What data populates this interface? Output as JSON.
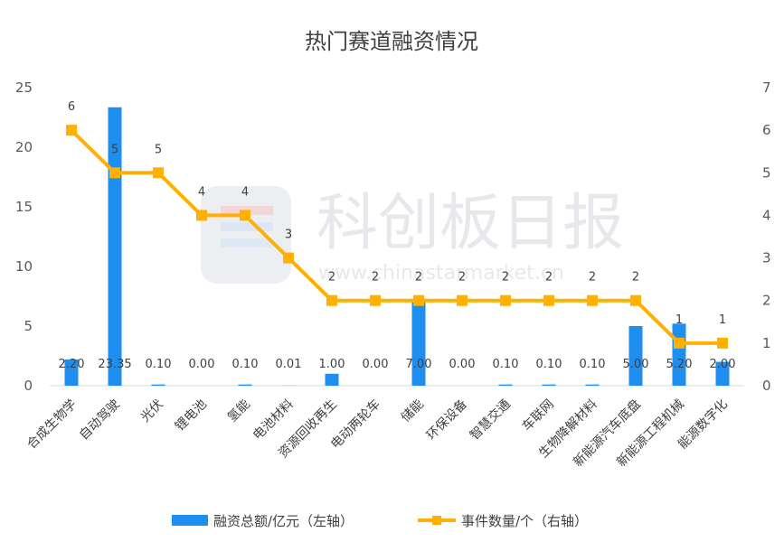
{
  "chart_data": {
    "type": "bar",
    "title": "热门赛道融资情况",
    "categories": [
      "合成生物学",
      "自动驾驶",
      "光伏",
      "锂电池",
      "氢能",
      "电池材料",
      "资源回收再生",
      "电动两轮车",
      "储能",
      "环保设备",
      "智慧交通",
      "车联网",
      "生物降解材料",
      "新能源汽车底盘",
      "新能源工程机械",
      "能源数字化"
    ],
    "series": [
      {
        "name": "融资总额/亿元（左轴）",
        "type": "bar",
        "axis": "left",
        "values": [
          2.2,
          23.35,
          0.1,
          0.0,
          0.1,
          0.01,
          1.0,
          0.0,
          7.0,
          0.0,
          0.1,
          0.1,
          0.1,
          5.0,
          5.2,
          2.0
        ],
        "labels": [
          "2.20",
          "23.35",
          "0.10",
          "0.00",
          "0.10",
          "0.01",
          "1.00",
          "0.00",
          "7.00",
          "0.00",
          "0.10",
          "0.10",
          "0.10",
          "5.00",
          "5.20",
          "2.00"
        ],
        "color": "#1f8ef1"
      },
      {
        "name": "事件数量/个（右轴）",
        "type": "line",
        "axis": "right",
        "values": [
          6,
          5,
          5,
          4,
          4,
          3,
          2,
          2,
          2,
          2,
          2,
          2,
          2,
          2,
          1,
          1
        ],
        "labels": [
          "6",
          "5",
          "5",
          "4",
          "4",
          "3",
          "2",
          "2",
          "2",
          "2",
          "2",
          "2",
          "2",
          "2",
          "1",
          "1"
        ],
        "color": "#ffb000"
      }
    ],
    "y_left": {
      "min": 0,
      "max": 25,
      "ticks": [
        "0",
        "5",
        "10",
        "15",
        "20",
        "25"
      ]
    },
    "y_right": {
      "min": 0,
      "max": 7,
      "ticks": [
        "0",
        "1",
        "2",
        "3",
        "4",
        "5",
        "6",
        "7"
      ]
    },
    "grid": false,
    "legend_position": "bottom"
  },
  "watermark": {
    "text": "科创板日报",
    "url": "www.chinastarmarket.cn"
  }
}
